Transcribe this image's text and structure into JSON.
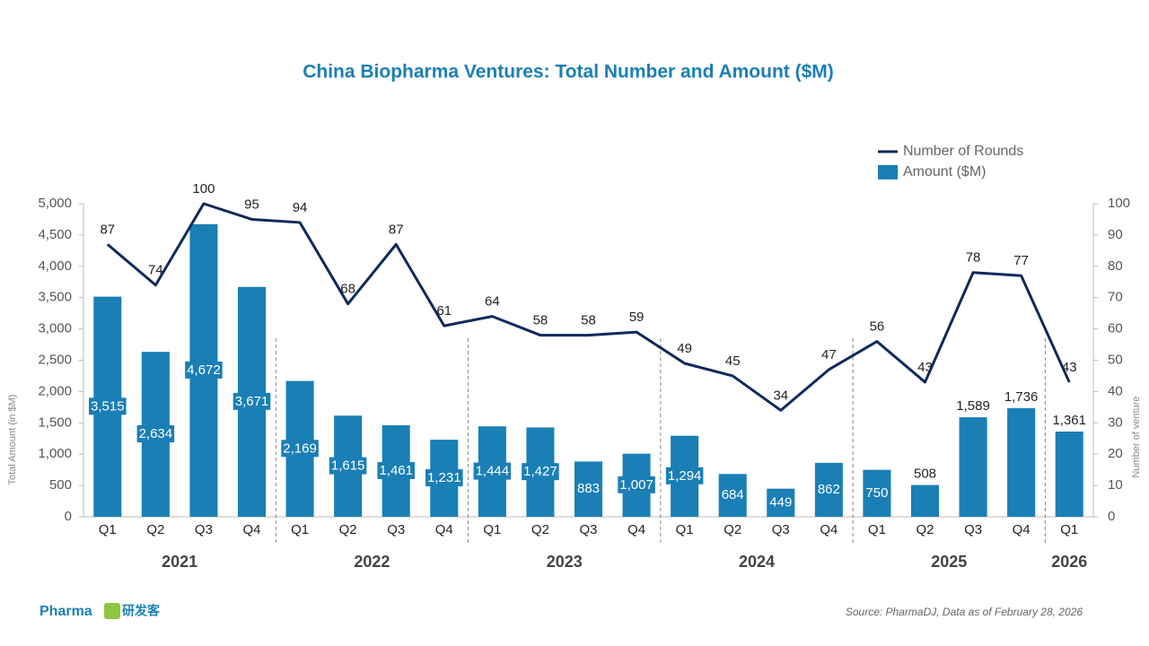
{
  "chart_data": {
    "type": "combo",
    "title": "China Biopharma Ventures: Total Number and Amount ($M)",
    "ylabel": "Total Amount (in $M)",
    "y2label": "Number of venture",
    "source": "Source: PharmaDJ, Data as of February 28, 2026",
    "logo": [
      "Pharma",
      "研发客"
    ],
    "categories": [
      "Q1",
      "Q2",
      "Q3",
      "Q4",
      "Q1",
      "Q2",
      "Q3",
      "Q4",
      "Q1",
      "Q2",
      "Q3",
      "Q4",
      "Q1",
      "Q2",
      "Q3",
      "Q4",
      "Q1",
      "Q2",
      "Q3",
      "Q4",
      "Q1"
    ],
    "groups": [
      "2021",
      "2022",
      "2023",
      "2024",
      "2025",
      "2026"
    ],
    "group_sizes": [
      4,
      4,
      4,
      4,
      4,
      1
    ],
    "series": [
      {
        "name": "Number of Rounds",
        "type": "line",
        "axis": "y2",
        "color": "#0e2a5c",
        "values": [
          87,
          74,
          100,
          95,
          94,
          68,
          87,
          61,
          64,
          58,
          58,
          59,
          49,
          45,
          34,
          47,
          56,
          43,
          78,
          77,
          43
        ]
      },
      {
        "name": "Amount ($M)",
        "type": "bar",
        "color": "#1a7fb5",
        "values": [
          3515,
          2634,
          4672,
          3671,
          2169,
          1615,
          1461,
          1231,
          1444,
          1427,
          883,
          1007,
          1294,
          684,
          449,
          862,
          750,
          508,
          1589,
          1736,
          1361
        ],
        "value_labels": [
          "3,515",
          "2,634",
          "4,672",
          "3,671",
          "2,169",
          "1,615",
          "1,461",
          "1,231",
          "1,444",
          "1,427",
          "883",
          "1,007",
          "1,294",
          "684",
          "449",
          "862",
          "750",
          "508",
          "1,589",
          "1,736",
          "1,361"
        ]
      }
    ],
    "ylim": [
      0,
      5000
    ],
    "yticks": [
      0,
      500,
      {
        "value": 1000,
        "label": "1,000"
      },
      {
        "value": 1500,
        "label": "1,500"
      },
      {
        "value": 2000,
        "label": "2,000"
      },
      {
        "value": 2500,
        "label": "2,500"
      },
      {
        "value": 3000,
        "label": "3,000"
      },
      {
        "value": 3500,
        "label": "3,500"
      },
      {
        "value": 4000,
        "label": "4,000"
      },
      {
        "value": 4500,
        "label": "4,500"
      },
      {
        "value": 5000,
        "label": "5,000"
      }
    ],
    "y2lim": [
      0,
      100
    ],
    "y2ticks": [
      0,
      10,
      20,
      30,
      40,
      50,
      60,
      70,
      80,
      90,
      100
    ],
    "grid": false,
    "legend": "top-right"
  }
}
